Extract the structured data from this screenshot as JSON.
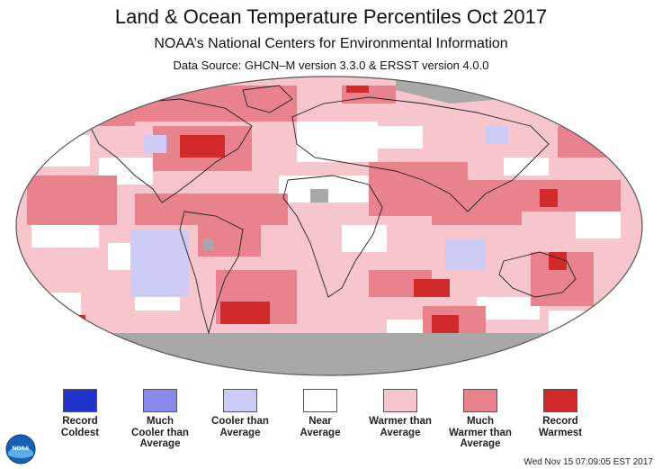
{
  "header": {
    "title": "Land & Ocean Temperature Percentiles Oct 2017",
    "subtitle": "NOAA’s National Centers for Environmental Information",
    "source": "Data Source: GHCN–M version 3.3.0 & ERSST version 4.0.0"
  },
  "legend": [
    {
      "label": "Record\nColdest",
      "color": "#2233cc"
    },
    {
      "label": "Much\nCooler than\nAverage",
      "color": "#8a8aee"
    },
    {
      "label": "Cooler than\nAverage",
      "color": "#ccccf6"
    },
    {
      "label": "Near\nAverage",
      "color": "#ffffff"
    },
    {
      "label": "Warmer than\nAverage",
      "color": "#f7c6cd"
    },
    {
      "label": "Much\nWarmer than\nAverage",
      "color": "#e8828c"
    },
    {
      "label": "Record\nWarmest",
      "color": "#d22a2a"
    }
  ],
  "map": {
    "colors": {
      "no_data": "#a8a8a8",
      "near": "#ffffff",
      "warmer": "#f7c6cd",
      "much_warmer": "#e8828c",
      "record_warm": "#d22a2a",
      "cooler": "#ccccf6"
    }
  },
  "footer": {
    "timestamp": "Wed Nov 15 07:09:05 EST 2017",
    "logo_text": "NOAA"
  }
}
